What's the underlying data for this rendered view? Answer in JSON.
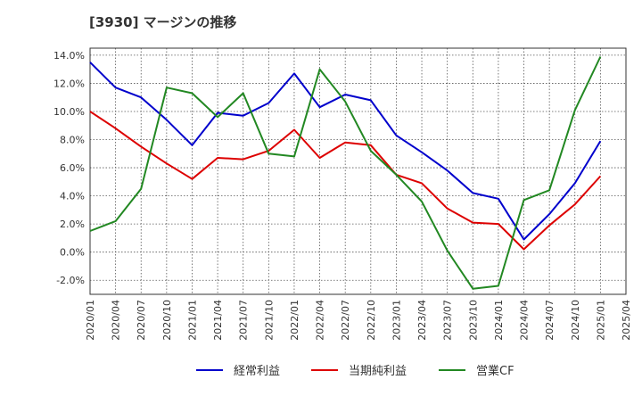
{
  "chart_data": {
    "type": "line",
    "title": "[3930]  マージンの推移",
    "x": [
      "2020/01",
      "2020/04",
      "2020/07",
      "2020/10",
      "2021/01",
      "2021/04",
      "2021/07",
      "2021/10",
      "2022/01",
      "2022/04",
      "2022/07",
      "2022/10",
      "2023/01",
      "2023/04",
      "2023/07",
      "2023/10",
      "2024/01",
      "2024/04",
      "2024/07",
      "2024/10",
      "2025/01",
      "2025/04"
    ],
    "y_ticks": [
      "14.0%",
      "12.0%",
      "10.0%",
      "8.0%",
      "6.0%",
      "4.0%",
      "2.0%",
      "0.0%",
      "-2.0%"
    ],
    "ylim": [
      -3.0,
      14.5
    ],
    "grid": true,
    "legend_position": "bottom",
    "series": [
      {
        "name": "経常利益",
        "color": "#0000cc",
        "values": [
          13.5,
          11.7,
          11.0,
          9.4,
          7.6,
          9.9,
          9.7,
          10.6,
          12.7,
          10.3,
          11.2,
          10.8,
          8.3,
          7.1,
          5.8,
          4.2,
          3.8,
          0.9,
          2.7,
          4.9,
          7.9,
          null
        ]
      },
      {
        "name": "当期純利益",
        "color": "#dd0000",
        "values": [
          10.0,
          8.8,
          7.5,
          6.3,
          5.2,
          6.7,
          6.6,
          7.2,
          8.7,
          6.7,
          7.8,
          7.6,
          5.5,
          4.9,
          3.1,
          2.1,
          2.0,
          0.2,
          1.9,
          3.4,
          5.4,
          null
        ]
      },
      {
        "name": "営業CF",
        "color": "#228822",
        "values": [
          1.5,
          2.2,
          4.5,
          11.7,
          11.3,
          9.6,
          11.3,
          7.0,
          6.8,
          13.0,
          10.7,
          7.2,
          5.5,
          3.6,
          0.1,
          -2.6,
          -2.4,
          3.7,
          4.4,
          10.1,
          13.9,
          null
        ]
      }
    ]
  }
}
